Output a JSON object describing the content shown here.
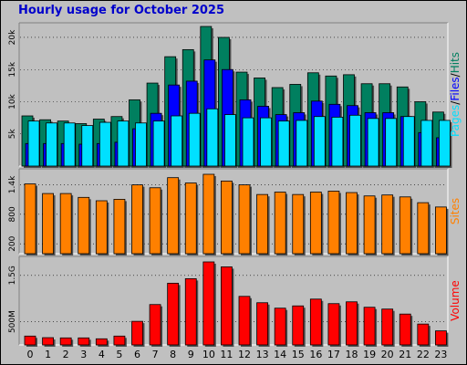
{
  "title": "Hourly usage for October 2025",
  "colors": {
    "hits": "#007f5f",
    "files": "#0000ff",
    "pages": "#00e0ff",
    "sites": "#ff8000",
    "volume": "#ff0000",
    "plot_bg": "#c0c0c0",
    "frame_bg": "#c0c0c0"
  },
  "chart_data": [
    {
      "type": "bar",
      "categories": [
        "0",
        "1",
        "2",
        "3",
        "4",
        "5",
        "6",
        "7",
        "8",
        "9",
        "10",
        "11",
        "12",
        "13",
        "14",
        "15",
        "16",
        "17",
        "18",
        "19",
        "20",
        "21",
        "22",
        "23"
      ],
      "series": [
        {
          "name": "Hits",
          "values": [
            7800,
            7200,
            7000,
            6600,
            7300,
            7700,
            10300,
            12900,
            17000,
            18100,
            21700,
            20000,
            14600,
            13700,
            12200,
            12700,
            14500,
            14000,
            14200,
            12800,
            12800,
            12300,
            10000,
            8400
          ]
        },
        {
          "name": "Files",
          "values": [
            3500,
            3500,
            3500,
            3400,
            3500,
            3700,
            5800,
            8200,
            12600,
            13200,
            16500,
            15000,
            10300,
            9300,
            8000,
            8300,
            10100,
            9600,
            9400,
            8300,
            8300,
            7700,
            5200,
            4400
          ]
        },
        {
          "name": "Pages",
          "values": [
            7000,
            6700,
            6700,
            6300,
            6800,
            7000,
            6700,
            7000,
            7800,
            8200,
            8900,
            8000,
            7500,
            7500,
            7000,
            7100,
            7700,
            7600,
            7900,
            7400,
            7400,
            7700,
            7100,
            7100
          ]
        }
      ],
      "y_ticks": [
        "5k",
        "10k",
        "15k",
        "20k"
      ],
      "y_tick_values": [
        5000,
        10000,
        15000,
        20000
      ],
      "ylim": [
        0,
        21700
      ],
      "legend": [
        {
          "label": "Pages",
          "color": "#00e0ff"
        },
        {
          "label": "Files",
          "color": "#0000ff"
        },
        {
          "label": "Hits",
          "color": "#007f5f"
        }
      ],
      "legend_separator": "/",
      "legend_placement": "right"
    },
    {
      "type": "bar",
      "categories": [
        "0",
        "1",
        "2",
        "3",
        "4",
        "5",
        "6",
        "7",
        "8",
        "9",
        "10",
        "11",
        "12",
        "13",
        "14",
        "15",
        "16",
        "17",
        "18",
        "19",
        "20",
        "21",
        "22",
        "23"
      ],
      "series": [
        {
          "name": "Sites",
          "values": [
            1450,
            1250,
            1250,
            1170,
            1100,
            1130,
            1430,
            1370,
            1580,
            1470,
            1650,
            1510,
            1430,
            1230,
            1280,
            1230,
            1280,
            1300,
            1270,
            1200,
            1220,
            1180,
            1060,
            970
          ]
        }
      ],
      "y_ticks": [
        "200",
        "800",
        "1.4k"
      ],
      "y_tick_values": [
        200,
        800,
        1400
      ],
      "ylim": [
        0,
        1650
      ],
      "legend": [
        {
          "label": "Sites",
          "color": "#ff8000"
        }
      ],
      "legend_placement": "right"
    },
    {
      "type": "bar",
      "categories": [
        "0",
        "1",
        "2",
        "3",
        "4",
        "5",
        "6",
        "7",
        "8",
        "9",
        "10",
        "11",
        "12",
        "13",
        "14",
        "15",
        "16",
        "17",
        "18",
        "19",
        "20",
        "21",
        "22",
        "23"
      ],
      "series": [
        {
          "name": "Volume",
          "values": [
            195,
            160,
            155,
            155,
            135,
            195,
            520,
            890,
            1360,
            1460,
            1830,
            1720,
            1070,
            930,
            810,
            860,
            1010,
            910,
            950,
            830,
            790,
            680,
            460,
            310
          ]
        }
      ],
      "y_ticks": [
        "500M",
        "1.5G"
      ],
      "y_tick_values": [
        500,
        1500
      ],
      "y_unit": "MB",
      "ylim": [
        0,
        1830
      ],
      "legend": [
        {
          "label": "Volume",
          "color": "#ff0000"
        }
      ],
      "legend_placement": "right"
    }
  ]
}
